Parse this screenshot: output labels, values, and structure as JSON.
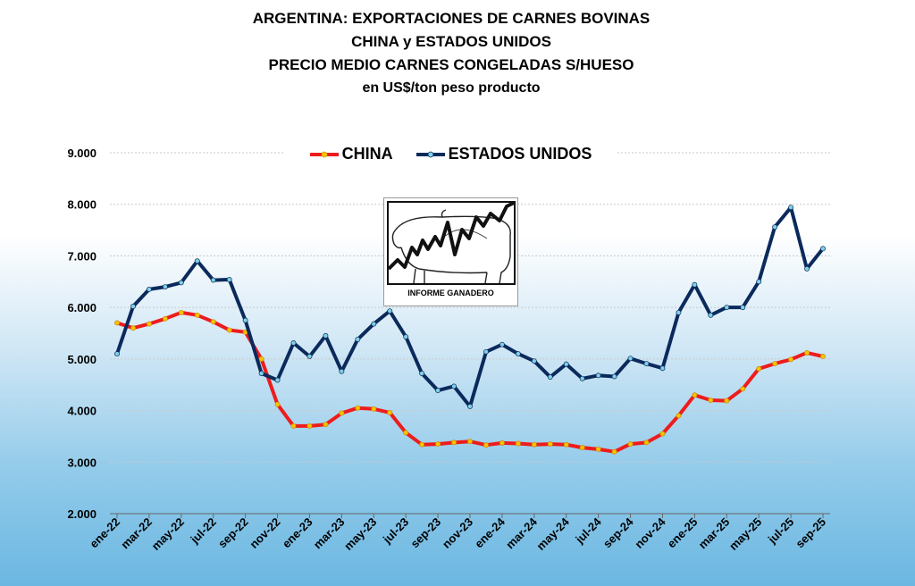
{
  "chart_data": {
    "type": "line",
    "title_lines": [
      "ARGENTINA: EXPORTACIONES DE CARNES BOVINAS",
      "CHINA y ESTADOS UNIDOS",
      "PRECIO MEDIO CARNES CONGELADAS S/HUESO",
      "en US$/ton peso producto"
    ],
    "ylim": [
      2000,
      9000
    ],
    "y_ticks": [
      {
        "value": 9000,
        "label": "9.000"
      },
      {
        "value": 8000,
        "label": "8.000"
      },
      {
        "value": 7000,
        "label": "7.000"
      },
      {
        "value": 6000,
        "label": "6.000"
      },
      {
        "value": 5000,
        "label": "5.000"
      },
      {
        "value": 4000,
        "label": "4.000"
      },
      {
        "value": 3000,
        "label": "3.000"
      },
      {
        "value": 2000,
        "label": "2.000"
      }
    ],
    "grid": true,
    "legend_position": "top-center",
    "x_tick_labels": [
      "ene-22",
      "mar-22",
      "may-22",
      "jul-22",
      "sep-22",
      "nov-22",
      "ene-23",
      "mar-23",
      "may-23",
      "jul-23",
      "sep-23",
      "nov-23",
      "ene-24",
      "mar-24",
      "may-24",
      "jul-24",
      "sep-24",
      "nov-24",
      "ene-25",
      "mar-25",
      "may-25",
      "jul-25",
      "sep-25"
    ],
    "x": [
      "ene-22",
      "feb-22",
      "mar-22",
      "abr-22",
      "may-22",
      "jun-22",
      "jul-22",
      "ago-22",
      "sep-22",
      "oct-22",
      "nov-22",
      "dic-22",
      "ene-23",
      "feb-23",
      "mar-23",
      "abr-23",
      "may-23",
      "jun-23",
      "jul-23",
      "ago-23",
      "sep-23",
      "oct-23",
      "nov-23",
      "dic-23",
      "ene-24",
      "feb-24",
      "mar-24",
      "abr-24",
      "may-24",
      "jun-24",
      "jul-24",
      "ago-24",
      "sep-24",
      "oct-24",
      "nov-24",
      "dic-24",
      "ene-25",
      "feb-25",
      "mar-25",
      "abr-25",
      "may-25",
      "jun-25",
      "jul-25",
      "ago-25",
      "sep-25"
    ],
    "series": [
      {
        "name": "CHINA",
        "color": "#ee1c1c",
        "marker_color": "#f5c400",
        "values": [
          5700,
          5600,
          5680,
          5780,
          5900,
          5850,
          5720,
          5560,
          5520,
          5000,
          4120,
          3700,
          3700,
          3730,
          3950,
          4050,
          4030,
          3960,
          3570,
          3340,
          3350,
          3380,
          3400,
          3330,
          3370,
          3360,
          3340,
          3350,
          3340,
          3280,
          3250,
          3200,
          3350,
          3380,
          3550,
          3900,
          4300,
          4200,
          4190,
          4420,
          4810,
          4910,
          4990,
          5120,
          5050
        ]
      },
      {
        "name": "ESTADOS UNIDOS",
        "color": "#0b2a5c",
        "marker_color": "#7fd0e6",
        "values": [
          5100,
          6020,
          6350,
          6400,
          6480,
          6900,
          6530,
          6540,
          5750,
          4720,
          4590,
          5310,
          5050,
          5450,
          4760,
          5380,
          5680,
          5930,
          5430,
          4720,
          4390,
          4470,
          4080,
          5140,
          5280,
          5100,
          4960,
          4650,
          4900,
          4620,
          4680,
          4660,
          5010,
          4910,
          4820,
          5900,
          6440,
          5850,
          6000,
          6000,
          6500,
          7560,
          7940,
          6750,
          7140
        ]
      }
    ]
  },
  "logo": {
    "caption": "INFORME GANADERO"
  }
}
